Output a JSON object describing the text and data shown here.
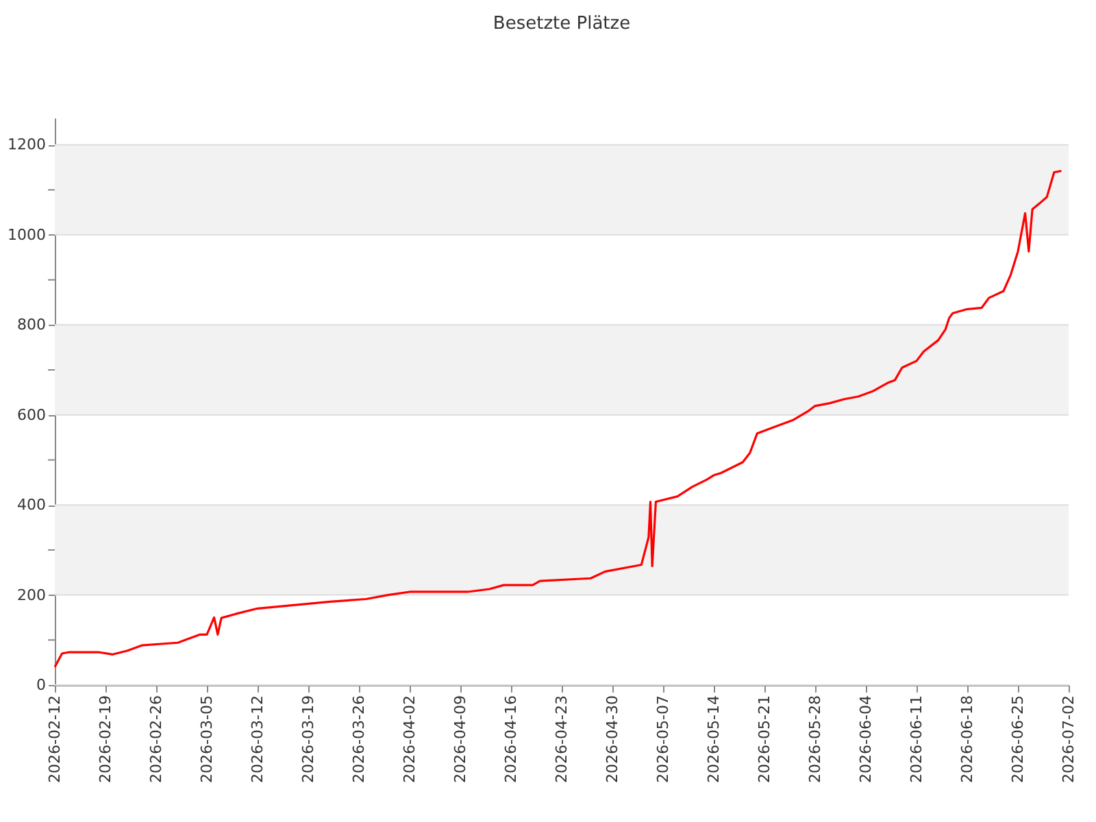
{
  "chart_data": {
    "type": "line",
    "title": "Besetzte Plätze",
    "x": [
      "2026-02-12",
      "2026-02-13",
      "2026-02-14",
      "2026-02-18",
      "2026-02-20",
      "2026-02-22",
      "2026-02-24",
      "2026-03-01",
      "2026-03-02",
      "2026-03-04",
      "2026-03-05",
      "2026-03-06",
      "2026-03-06T12:00",
      "2026-03-07",
      "2026-03-09",
      "2026-03-12",
      "2026-03-16",
      "2026-03-22",
      "2026-03-27",
      "2026-03-30",
      "2026-04-02",
      "2026-04-10",
      "2026-04-13",
      "2026-04-15",
      "2026-04-19",
      "2026-04-20",
      "2026-04-27",
      "2026-04-29",
      "2026-05-03",
      "2026-05-04",
      "2026-05-05",
      "2026-05-05T06:00",
      "2026-05-05T12:00",
      "2026-05-06",
      "2026-05-09",
      "2026-05-11",
      "2026-05-13",
      "2026-05-14",
      "2026-05-15",
      "2026-05-18",
      "2026-05-19",
      "2026-05-20",
      "2026-05-22",
      "2026-05-25",
      "2026-05-27",
      "2026-05-28",
      "2026-05-30",
      "2026-06-01",
      "2026-06-03",
      "2026-06-05",
      "2026-06-07",
      "2026-06-08",
      "2026-06-09",
      "2026-06-11",
      "2026-06-12",
      "2026-06-14",
      "2026-06-15",
      "2026-06-15T12:00",
      "2026-06-16",
      "2026-06-18",
      "2026-06-20",
      "2026-06-21",
      "2026-06-23",
      "2026-06-24",
      "2026-06-25",
      "2026-06-26",
      "2026-06-26T12:00",
      "2026-06-27",
      "2026-06-28",
      "2026-06-29",
      "2026-06-30",
      "2026-07-01"
    ],
    "series": [
      {
        "color": "#ff0000",
        "values": [
          40,
          70,
          73,
          73,
          68,
          76,
          88,
          94,
          100,
          112,
          112,
          150,
          112,
          149,
          158,
          170,
          176,
          185,
          191,
          200,
          207,
          207,
          213,
          222,
          222,
          231,
          237,
          252,
          264,
          267,
          328,
          407,
          264,
          407,
          419,
          440,
          456,
          466,
          471,
          495,
          516,
          559,
          571,
          589,
          608,
          620,
          626,
          635,
          641,
          653,
          671,
          677,
          705,
          720,
          741,
          766,
          790,
          815,
          826,
          835,
          838,
          860,
          875,
          911,
          963,
          1048,
          963,
          1057,
          1070,
          1084,
          1139,
          1142
        ]
      }
    ],
    "xlim": [
      "2026-02-12",
      "2026-07-02"
    ],
    "xticks": [
      "2026-02-12",
      "2026-02-19",
      "2026-02-26",
      "2026-03-05",
      "2026-03-12",
      "2026-03-19",
      "2026-03-26",
      "2026-04-02",
      "2026-04-09",
      "2026-04-16",
      "2026-04-23",
      "2026-04-30",
      "2026-05-07",
      "2026-05-14",
      "2026-05-21",
      "2026-05-28",
      "2026-06-04",
      "2026-06-11",
      "2026-06-18",
      "2026-06-25",
      "2026-07-02"
    ],
    "ylim": [
      0,
      1260
    ],
    "yticks": [
      0,
      {
        "value": 100,
        "label": null
      },
      200,
      {
        "value": 300,
        "label": null
      },
      400,
      {
        "value": 500,
        "label": null
      },
      600,
      {
        "value": 700,
        "label": null
      },
      800,
      {
        "value": 900,
        "label": null
      },
      1000,
      {
        "value": 1100,
        "label": null
      },
      1200
    ],
    "grid": "y",
    "bands": [
      {
        "axis": "y",
        "from": 200,
        "to": 400,
        "color": "#f2f2f2"
      },
      {
        "axis": "y",
        "from": 600,
        "to": 800,
        "color": "#f2f2f2"
      },
      {
        "axis": "y",
        "from": 1000,
        "to": 1200,
        "color": "#f2f2f2"
      }
    ],
    "marker": "none",
    "line_style": "solid"
  }
}
